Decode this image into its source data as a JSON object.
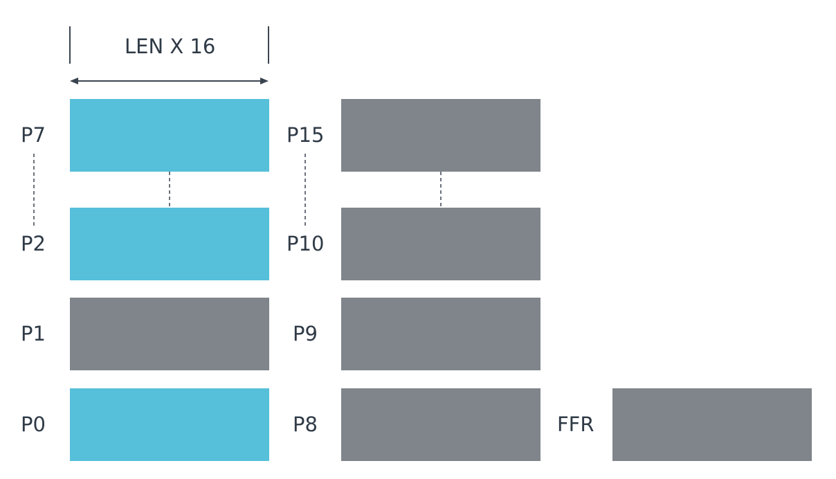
{
  "diagram": {
    "width_label": "LEN X 16",
    "colors": {
      "highlight": "#56bfda",
      "inactive": "#7f858b",
      "text": "#2f3a46",
      "line": "#3a4450"
    },
    "registers": [
      {
        "label": "P7",
        "state": "highlight"
      },
      {
        "label": "P2",
        "state": "highlight"
      },
      {
        "label": "P1",
        "state": "inactive"
      },
      {
        "label": "P0",
        "state": "highlight"
      },
      {
        "label": "P15",
        "state": "inactive"
      },
      {
        "label": "P10",
        "state": "inactive"
      },
      {
        "label": "P9",
        "state": "inactive"
      },
      {
        "label": "P8",
        "state": "inactive"
      },
      {
        "label": "FFR",
        "state": "inactive"
      }
    ]
  }
}
